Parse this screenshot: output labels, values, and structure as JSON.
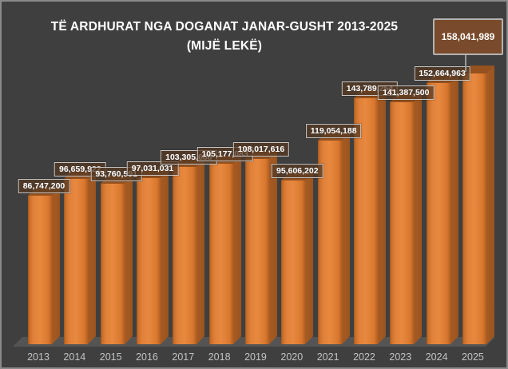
{
  "window": {
    "background": "#3f3f3f",
    "border_color": "#8a8a8a"
  },
  "chart_data": {
    "type": "bar",
    "title_line1": "TË ARDHURAT NGA DOGANAT JANAR-GUSHT 2013-2025",
    "title_line2": "(MIJË LEKË)",
    "categories": [
      "2013",
      "2014",
      "2015",
      "2016",
      "2017",
      "2018",
      "2019",
      "2020",
      "2021",
      "2022",
      "2023",
      "2024",
      "2025"
    ],
    "values": [
      86747200,
      96659922,
      93760591,
      97031031,
      103305688,
      105177083,
      108017616,
      95606202,
      119054188,
      143789254,
      141387500,
      152664963,
      158041989
    ],
    "labels": [
      "86,747,200",
      "96,659,922",
      "93,760,591",
      "97,031,031",
      "103,305,688",
      "105,177,083",
      "108,017,616",
      "95,606,202",
      "119,054,188",
      "143,789,254",
      "141,387,500",
      "152,664,963",
      "158,041,989"
    ],
    "xlabel": "",
    "ylabel": "",
    "ylim": [
      0,
      158041989
    ],
    "grid": false,
    "legend": "none",
    "style_3d": true,
    "colors": {
      "bar_front": "#e0説7c31",
      "bar_front_light": "#e8893f",
      "bar_front_dark": "#b05f23",
      "bar_side": "#a85b22",
      "bar_top": "#95511e",
      "floor": "#545454",
      "title_text": "#ffffff",
      "axis_text": "#c3c3c3",
      "label_box_bg": "rgba(86,57,36,0.75)",
      "label_box_border": "#c9c7c5"
    },
    "callout": {
      "year": "2025",
      "label": "158,041,989",
      "bg": "#794a2b",
      "border": "#b5b3b1"
    }
  }
}
